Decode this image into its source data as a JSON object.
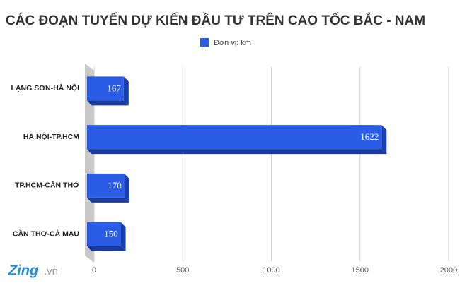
{
  "chart_data": {
    "type": "bar",
    "orientation": "horizontal",
    "title": "CÁC ĐOẠN TUYẾN DỰ KIẾN ĐẦU TƯ TRÊN CAO TỐC BẮC - NAM",
    "categories": [
      "LẠNG SƠN-HÀ NỘI",
      "HÀ NỘI-TP.HCM",
      "TP.HCM-CẦN THƠ",
      "CẦN THƠ-CÀ MAU"
    ],
    "series": [
      {
        "name": "Đơn vị: km",
        "color": "#2a5ce6",
        "values": [
          167,
          1622,
          170,
          150
        ]
      }
    ],
    "xlim": [
      0,
      2000
    ],
    "xticks": [
      0,
      500,
      1000,
      1500,
      2000
    ],
    "grid": true,
    "watermark": {
      "brand": "Zing",
      "suffix": ".vn"
    }
  }
}
